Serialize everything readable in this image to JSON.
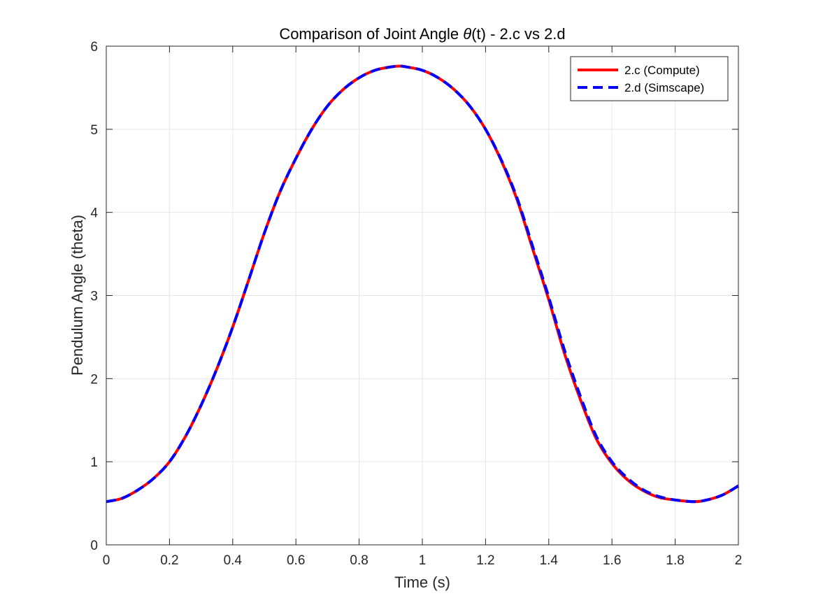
{
  "chart_data": {
    "type": "line",
    "title_prefix": "Comparison of Joint Angle ",
    "title_symbol": "θ",
    "title_suffix": "(t) - 2.c vs 2.d",
    "xlabel": "Time (s)",
    "ylabel": "Pendulum Angle (theta)",
    "xlim": [
      0,
      2
    ],
    "ylim": [
      0,
      6
    ],
    "xticks": [
      0,
      0.2,
      0.4,
      0.6,
      0.8,
      1,
      1.2,
      1.4,
      1.6,
      1.8,
      2
    ],
    "xtick_labels": [
      "0",
      "0.2",
      "0.4",
      "0.6",
      "0.8",
      "1",
      "1.2",
      "1.4",
      "1.6",
      "1.8",
      "2"
    ],
    "yticks": [
      0,
      1,
      2,
      3,
      4,
      5,
      6
    ],
    "ytick_labels": [
      "0",
      "1",
      "2",
      "3",
      "4",
      "5",
      "6"
    ],
    "grid": true,
    "legend_position": "top-right",
    "series": [
      {
        "name": "2.c (Compute)",
        "color": "#ff0000",
        "style": "solid",
        "x": [
          0,
          0.05,
          0.1,
          0.15,
          0.2,
          0.25,
          0.3,
          0.35,
          0.4,
          0.45,
          0.5,
          0.55,
          0.6,
          0.65,
          0.7,
          0.75,
          0.8,
          0.85,
          0.9,
          0.93,
          0.95,
          1.0,
          1.05,
          1.1,
          1.15,
          1.2,
          1.25,
          1.3,
          1.35,
          1.4,
          1.45,
          1.5,
          1.55,
          1.6,
          1.65,
          1.7,
          1.75,
          1.8,
          1.86,
          1.9,
          1.95,
          2.0
        ],
        "y": [
          0.52,
          0.56,
          0.66,
          0.8,
          1.0,
          1.3,
          1.68,
          2.12,
          2.62,
          3.18,
          3.75,
          4.25,
          4.65,
          5.0,
          5.28,
          5.48,
          5.62,
          5.71,
          5.75,
          5.76,
          5.75,
          5.71,
          5.62,
          5.48,
          5.28,
          5.0,
          4.62,
          4.15,
          3.55,
          2.95,
          2.3,
          1.75,
          1.28,
          0.98,
          0.78,
          0.65,
          0.57,
          0.54,
          0.52,
          0.54,
          0.6,
          0.71
        ]
      },
      {
        "name": "2.d (Simscape)",
        "color": "#0000ff",
        "style": "dashed",
        "x": [
          0,
          0.05,
          0.1,
          0.15,
          0.2,
          0.25,
          0.3,
          0.35,
          0.4,
          0.45,
          0.5,
          0.55,
          0.6,
          0.65,
          0.7,
          0.75,
          0.8,
          0.85,
          0.9,
          0.93,
          0.95,
          1.0,
          1.05,
          1.1,
          1.15,
          1.2,
          1.25,
          1.3,
          1.35,
          1.4,
          1.45,
          1.5,
          1.55,
          1.6,
          1.65,
          1.7,
          1.75,
          1.8,
          1.86,
          1.9,
          1.95,
          2.0
        ],
        "y": [
          0.52,
          0.56,
          0.66,
          0.8,
          1.0,
          1.3,
          1.68,
          2.12,
          2.62,
          3.18,
          3.75,
          4.25,
          4.65,
          5.0,
          5.28,
          5.48,
          5.62,
          5.71,
          5.75,
          5.76,
          5.75,
          5.71,
          5.62,
          5.48,
          5.28,
          5.0,
          4.63,
          4.17,
          3.58,
          2.98,
          2.34,
          1.79,
          1.31,
          1.0,
          0.8,
          0.66,
          0.58,
          0.54,
          0.52,
          0.54,
          0.6,
          0.71
        ]
      }
    ]
  }
}
